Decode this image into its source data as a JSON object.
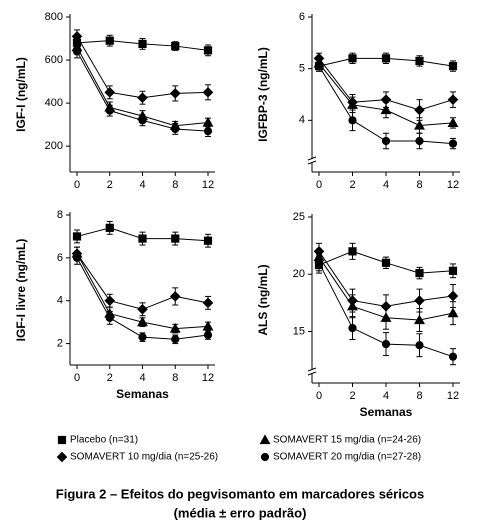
{
  "chart_data": [
    {
      "type": "line",
      "y_label": "IGF-I (ng/mL)",
      "categories": [
        "0",
        "2",
        "4",
        "8",
        "12"
      ],
      "ylim": [
        80,
        800
      ],
      "yticks": [
        200,
        400,
        600,
        800
      ],
      "axis_break": false,
      "series": [
        {
          "values": [
            680,
            690,
            675,
            665,
            645
          ],
          "errors": [
            25,
            25,
            25,
            20,
            25
          ]
        },
        {
          "values": [
            710,
            450,
            425,
            445,
            450
          ],
          "errors": [
            30,
            30,
            30,
            35,
            35
          ]
        },
        {
          "values": [
            660,
            380,
            340,
            295,
            310
          ],
          "errors": [
            30,
            25,
            25,
            20,
            20
          ]
        },
        {
          "values": [
            640,
            365,
            320,
            280,
            270
          ],
          "errors": [
            30,
            25,
            25,
            25,
            25
          ]
        }
      ]
    },
    {
      "type": "line",
      "y_label": "IGFBP-3 (ng/mL)",
      "categories": [
        "0",
        "2",
        "4",
        "8",
        "12"
      ],
      "ylim": [
        3,
        6
      ],
      "yticks": [
        4,
        5,
        6
      ],
      "axis_break": true,
      "series": [
        {
          "values": [
            5.05,
            5.2,
            5.2,
            5.15,
            5.05
          ],
          "errors": [
            0.1,
            0.1,
            0.1,
            0.1,
            0.1
          ]
        },
        {
          "values": [
            5.2,
            4.35,
            4.4,
            4.2,
            4.4
          ],
          "errors": [
            0.1,
            0.15,
            0.15,
            0.2,
            0.15
          ]
        },
        {
          "values": [
            5.1,
            4.3,
            4.2,
            3.9,
            3.95
          ],
          "errors": [
            0.1,
            0.15,
            0.15,
            0.15,
            0.1
          ]
        },
        {
          "values": [
            5.05,
            4.0,
            3.6,
            3.6,
            3.55
          ],
          "errors": [
            0.1,
            0.2,
            0.15,
            0.15,
            0.1
          ]
        }
      ]
    },
    {
      "type": "line",
      "y_label": "IGF-I livre (ng/mL)",
      "x_label": "Semanas",
      "categories": [
        "0",
        "2",
        "4",
        "8",
        "12"
      ],
      "ylim": [
        1,
        8
      ],
      "yticks": [
        2,
        4,
        6,
        8
      ],
      "axis_break": false,
      "series": [
        {
          "values": [
            7.0,
            7.4,
            6.9,
            6.9,
            6.8
          ],
          "errors": [
            0.3,
            0.3,
            0.3,
            0.3,
            0.3
          ]
        },
        {
          "values": [
            6.2,
            4.0,
            3.6,
            4.2,
            3.9
          ],
          "errors": [
            0.3,
            0.3,
            0.3,
            0.4,
            0.3
          ]
        },
        {
          "values": [
            6.2,
            3.4,
            3.0,
            2.7,
            2.8
          ],
          "errors": [
            0.3,
            0.3,
            0.2,
            0.2,
            0.2
          ]
        },
        {
          "values": [
            6.0,
            3.2,
            2.3,
            2.2,
            2.4
          ],
          "errors": [
            0.3,
            0.3,
            0.2,
            0.2,
            0.2
          ]
        }
      ]
    },
    {
      "type": "line",
      "y_label": "ALS (ng/mL)",
      "x_label": "Semanas",
      "categories": [
        "0",
        "2",
        "4",
        "8",
        "12"
      ],
      "ylim": [
        10.5,
        25
      ],
      "yticks": [
        15,
        20,
        25
      ],
      "axis_break": true,
      "series": [
        {
          "values": [
            20.8,
            22,
            21,
            20.1,
            20.3
          ],
          "errors": [
            0.7,
            0.7,
            0.5,
            0.5,
            0.6
          ]
        },
        {
          "values": [
            22.0,
            17.7,
            17.2,
            17.7,
            18.1
          ],
          "errors": [
            0.7,
            1,
            1,
            1,
            1
          ]
        },
        {
          "values": [
            21.5,
            17.2,
            16.2,
            16.0,
            16.6
          ],
          "errors": [
            0.7,
            1,
            1,
            1,
            1
          ]
        },
        {
          "values": [
            21.0,
            15.3,
            13.9,
            13.8,
            12.8
          ],
          "errors": [
            0.7,
            1,
            1,
            1,
            0.7
          ]
        }
      ]
    }
  ],
  "legend": [
    {
      "name": "Placebo (n=31)",
      "marker": "square",
      "color": "#000000"
    },
    {
      "name": "SOMAVERT 10 mg/dia (n=25-26)",
      "marker": "diamond",
      "color": "#000000"
    },
    {
      "name": "SOMAVERT 15 mg/dia (n=24-26)",
      "marker": "triangle",
      "color": "#000000"
    },
    {
      "name": "SOMAVERT 20 mg/dia (n=27-28)",
      "marker": "circle",
      "color": "#000000"
    }
  ],
  "caption": {
    "line1": "Figura 2 – Efeitos do pegvisomanto em marcadores séricos",
    "line2": "(média ± erro padrão)"
  }
}
